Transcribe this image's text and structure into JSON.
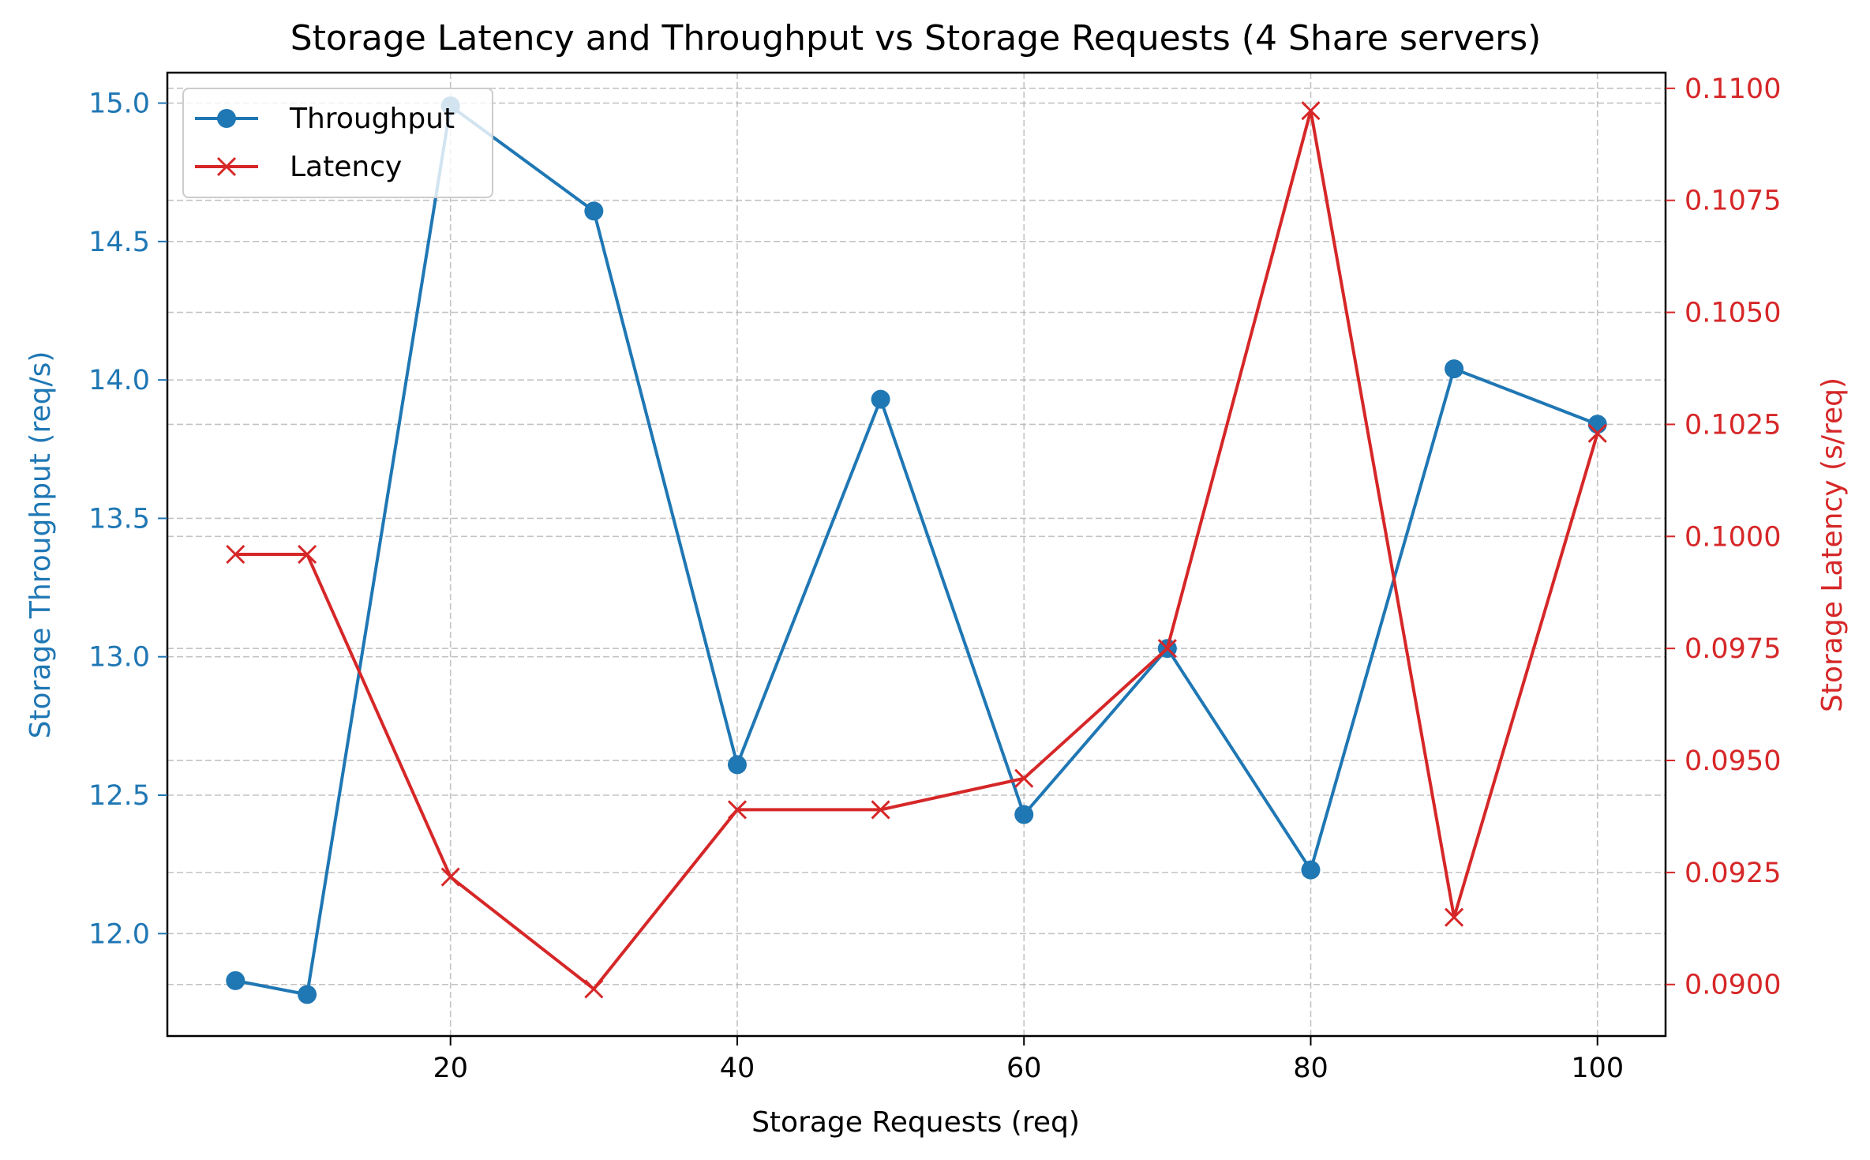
{
  "chart_data": {
    "type": "line",
    "title": "Storage Latency and Throughput vs Storage Requests (4 Share servers)",
    "xlabel": "Storage Requests (req)",
    "ylabel_left": "Storage Throughput (req/s)",
    "ylabel_right": "Storage Latency (s/req)",
    "x": [
      5,
      10,
      20,
      30,
      40,
      50,
      60,
      70,
      80,
      90,
      100
    ],
    "xlim": [
      0.25,
      104.75
    ],
    "xticks": [
      20,
      40,
      60,
      80,
      100
    ],
    "xtick_labels": [
      "20",
      "40",
      "60",
      "80",
      "100"
    ],
    "ylim_left": [
      11.63,
      15.11
    ],
    "yticks_left": [
      12.0,
      12.5,
      13.0,
      13.5,
      14.0,
      14.5,
      15.0
    ],
    "ytick_labels_left": [
      "12.0",
      "12.5",
      "13.0",
      "13.5",
      "14.0",
      "14.5",
      "15.0"
    ],
    "ylim_right": [
      0.08885,
      0.11035
    ],
    "yticks_right": [
      0.09,
      0.0925,
      0.095,
      0.0975,
      0.1,
      0.1025,
      0.105,
      0.1075,
      0.11
    ],
    "ytick_labels_right": [
      "0.0900",
      "0.0925",
      "0.0950",
      "0.0975",
      "0.1000",
      "0.1025",
      "0.1050",
      "0.1075",
      "0.1100"
    ],
    "grid": true,
    "legend_position": "top-left",
    "series": [
      {
        "name": "Throughput",
        "axis": "left",
        "color": "#1f77b4",
        "marker": "circle",
        "values": [
          11.83,
          11.78,
          14.99,
          14.61,
          12.61,
          13.93,
          12.43,
          13.03,
          12.23,
          14.04,
          13.84
        ]
      },
      {
        "name": "Latency",
        "axis": "right",
        "color": "#d62728",
        "marker": "x",
        "values": [
          0.0996,
          0.0996,
          0.0924,
          0.0899,
          0.0939,
          0.0939,
          0.0946,
          0.0975,
          0.1095,
          0.0915,
          0.1023
        ]
      }
    ]
  }
}
